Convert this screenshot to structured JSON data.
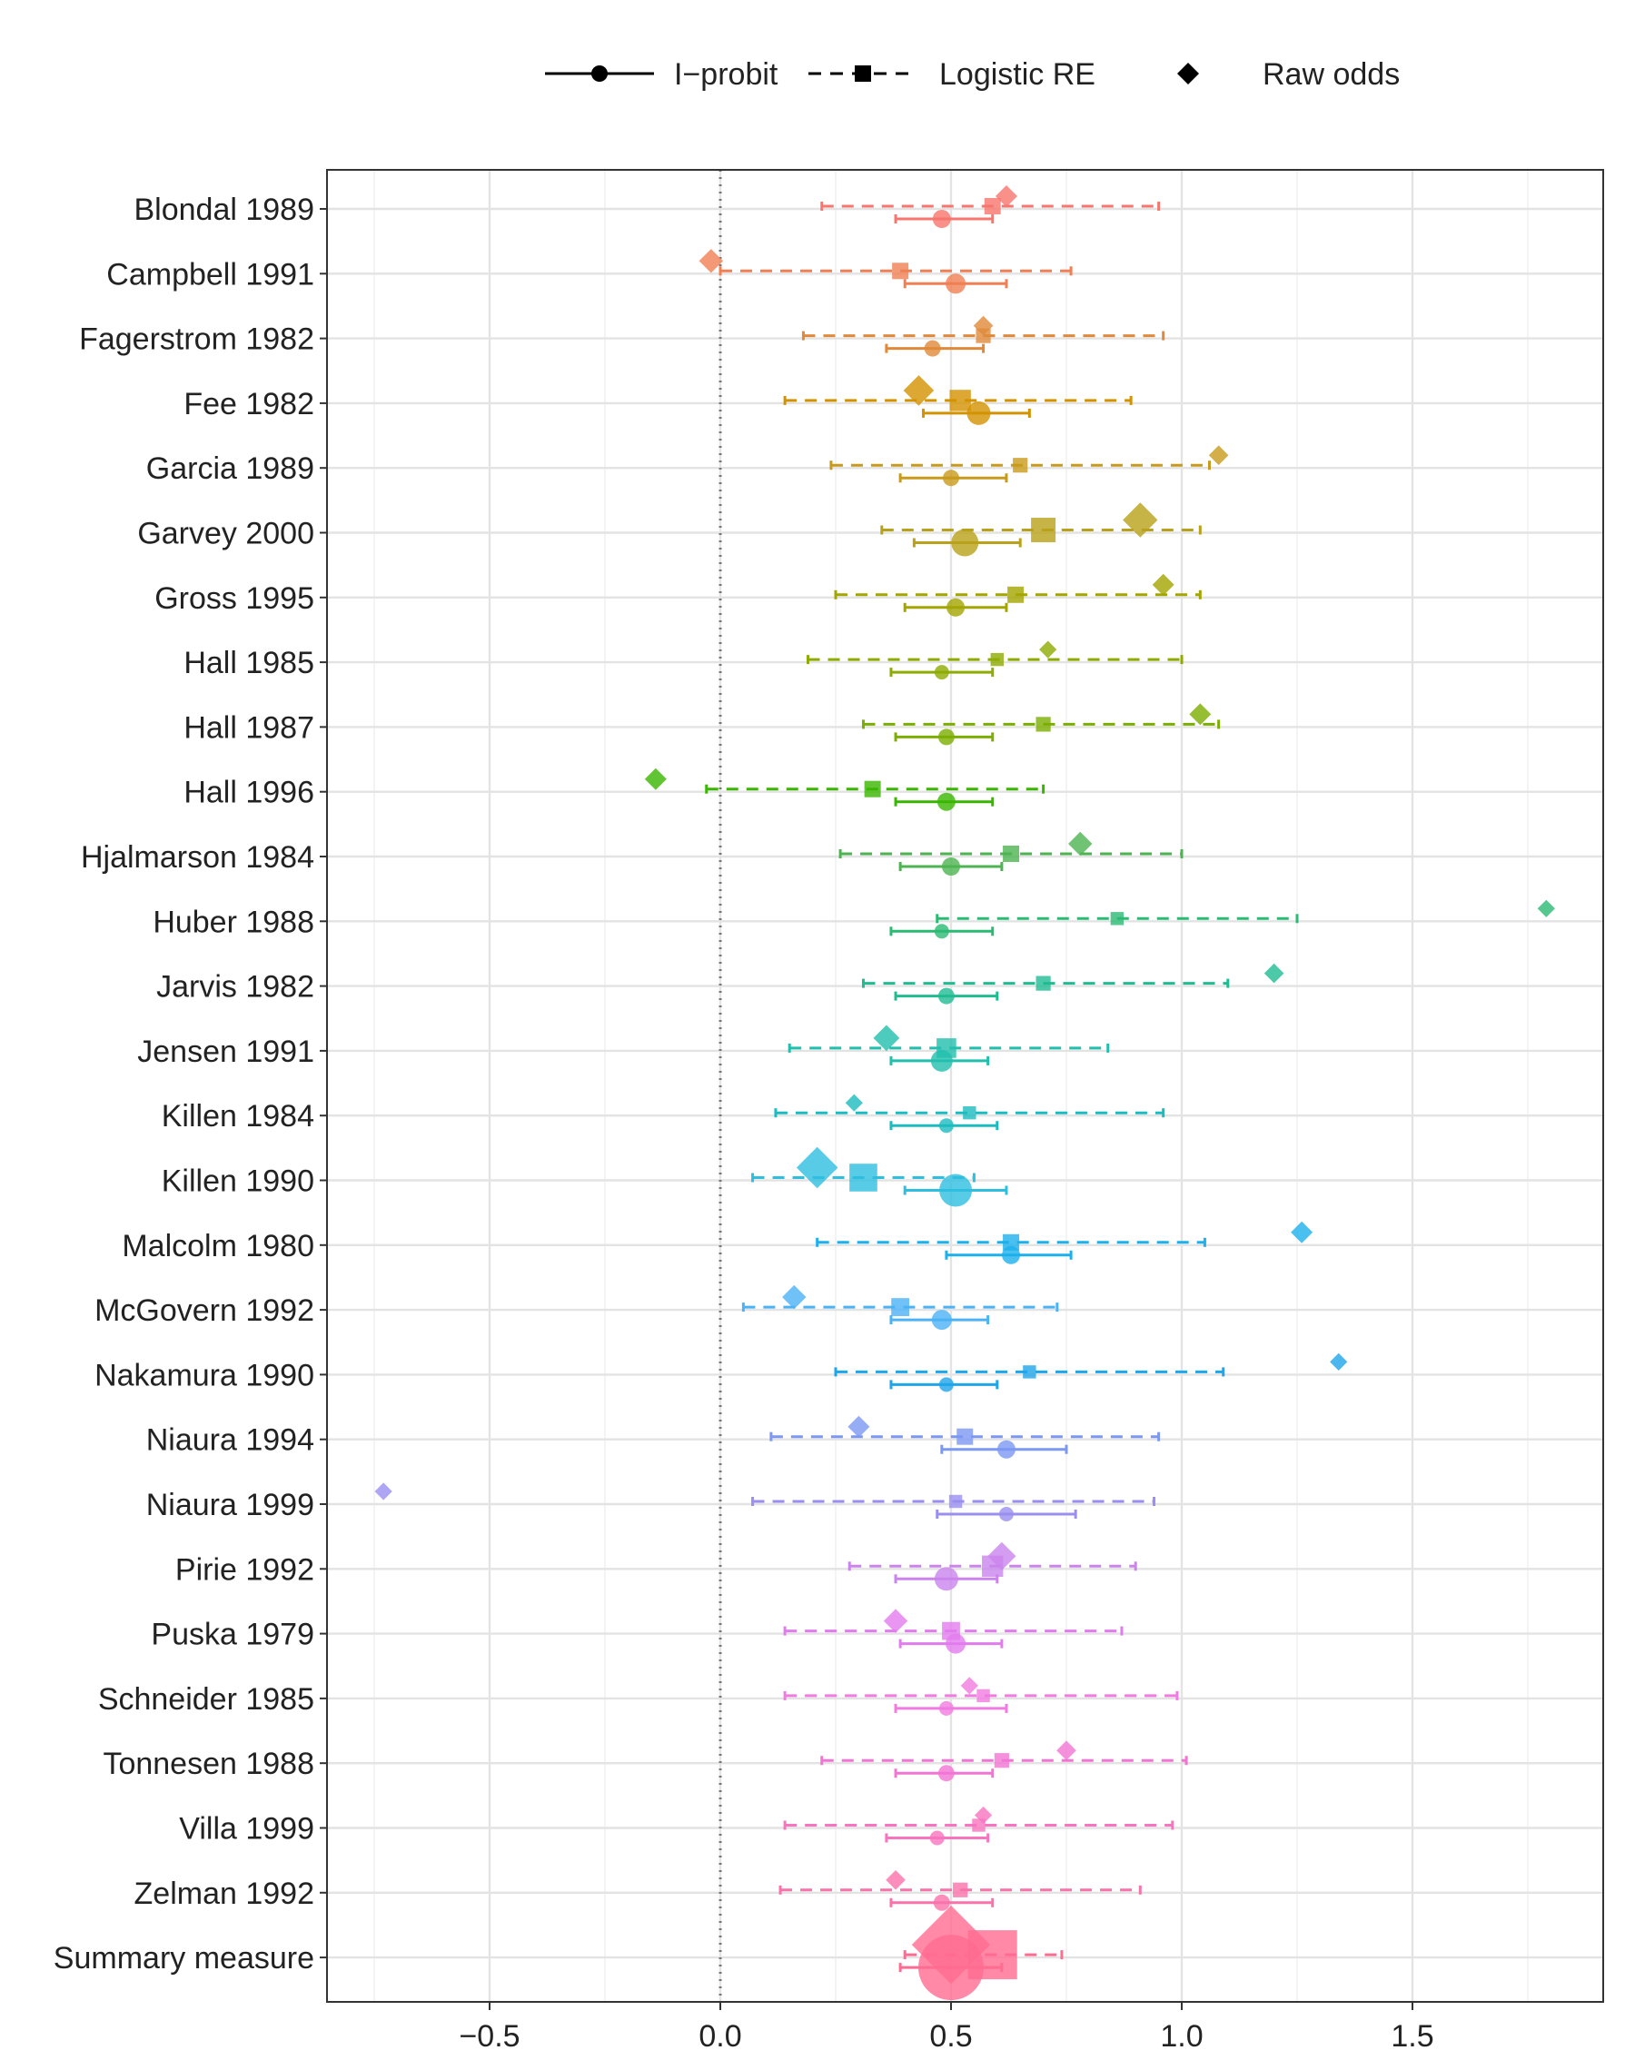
{
  "chart_data": {
    "type": "forest",
    "title": "",
    "xlabel": "",
    "ylabel": "",
    "xlim": [
      -0.75,
      1.82
    ],
    "xticks": [
      -0.5,
      0.0,
      0.5,
      1.0,
      1.5
    ],
    "xtick_labels": [
      "−0.5",
      "0.0",
      "0.5",
      "1.0",
      "1.5"
    ],
    "reference_line_x": 0.0,
    "grid": true,
    "legend_position": "top",
    "legend": [
      {
        "key": "iprobit",
        "label": "I−probit",
        "line": "solid",
        "marker": "circle"
      },
      {
        "key": "logistic",
        "label": "Logistic RE",
        "line": "dashed",
        "marker": "square"
      },
      {
        "key": "raw",
        "label": "Raw odds",
        "line": "none",
        "marker": "diamond"
      }
    ],
    "studies": [
      {
        "name": "Blondal 1989",
        "color": "#F8766D",
        "iprobit": {
          "est": 0.48,
          "lo": 0.38,
          "hi": 0.59,
          "size": 1.0
        },
        "logistic": {
          "est": 0.59,
          "lo": 0.22,
          "hi": 0.95,
          "size": 1.0
        },
        "raw": {
          "est": 0.62,
          "size": 1.0
        }
      },
      {
        "name": "Campbell 1991",
        "color": "#F07F53",
        "iprobit": {
          "est": 0.51,
          "lo": 0.4,
          "hi": 0.62,
          "size": 1.1
        },
        "logistic": {
          "est": 0.39,
          "lo": 0.0,
          "hi": 0.76,
          "size": 1.0
        },
        "raw": {
          "est": -0.02,
          "size": 1.1
        }
      },
      {
        "name": "Fagerstrom 1982",
        "color": "#E0893A",
        "iprobit": {
          "est": 0.46,
          "lo": 0.36,
          "hi": 0.57,
          "size": 0.9
        },
        "logistic": {
          "est": 0.57,
          "lo": 0.18,
          "hi": 0.96,
          "size": 0.9
        },
        "raw": {
          "est": 0.57,
          "size": 0.9
        }
      },
      {
        "name": "Fee 1982",
        "color": "#D39200",
        "iprobit": {
          "est": 0.56,
          "lo": 0.44,
          "hi": 0.67,
          "size": 1.3
        },
        "logistic": {
          "est": 0.52,
          "lo": 0.14,
          "hi": 0.89,
          "size": 1.3
        },
        "raw": {
          "est": 0.43,
          "size": 1.4
        }
      },
      {
        "name": "Garcia 1989",
        "color": "#C89A1C",
        "iprobit": {
          "est": 0.5,
          "lo": 0.39,
          "hi": 0.62,
          "size": 0.9
        },
        "logistic": {
          "est": 0.65,
          "lo": 0.24,
          "hi": 1.06,
          "size": 0.9
        },
        "raw": {
          "est": 1.08,
          "size": 0.9
        }
      },
      {
        "name": "Garvey 2000",
        "color": "#B9A119",
        "iprobit": {
          "est": 0.53,
          "lo": 0.42,
          "hi": 0.65,
          "size": 1.5
        },
        "logistic": {
          "est": 0.7,
          "lo": 0.35,
          "hi": 1.04,
          "size": 1.5
        },
        "raw": {
          "est": 0.91,
          "size": 1.6
        }
      },
      {
        "name": "Gross 1995",
        "color": "#A3A500",
        "iprobit": {
          "est": 0.51,
          "lo": 0.4,
          "hi": 0.62,
          "size": 1.0
        },
        "logistic": {
          "est": 0.64,
          "lo": 0.25,
          "hi": 1.04,
          "size": 1.0
        },
        "raw": {
          "est": 0.96,
          "size": 1.0
        }
      },
      {
        "name": "Hall 1985",
        "color": "#8DAB00",
        "iprobit": {
          "est": 0.48,
          "lo": 0.37,
          "hi": 0.59,
          "size": 0.8
        },
        "logistic": {
          "est": 0.6,
          "lo": 0.19,
          "hi": 1.0,
          "size": 0.8
        },
        "raw": {
          "est": 0.71,
          "size": 0.8
        }
      },
      {
        "name": "Hall 1987",
        "color": "#7CAE00",
        "iprobit": {
          "est": 0.49,
          "lo": 0.38,
          "hi": 0.59,
          "size": 0.9
        },
        "logistic": {
          "est": 0.7,
          "lo": 0.31,
          "hi": 1.08,
          "size": 0.9
        },
        "raw": {
          "est": 1.04,
          "size": 1.0
        }
      },
      {
        "name": "Hall 1996",
        "color": "#39B600",
        "iprobit": {
          "est": 0.49,
          "lo": 0.38,
          "hi": 0.59,
          "size": 1.0
        },
        "logistic": {
          "est": 0.33,
          "lo": -0.03,
          "hi": 0.7,
          "size": 1.0
        },
        "raw": {
          "est": -0.14,
          "size": 1.0
        }
      },
      {
        "name": "Hjalmarson 1984",
        "color": "#4DB451",
        "iprobit": {
          "est": 0.5,
          "lo": 0.39,
          "hi": 0.61,
          "size": 1.0
        },
        "logistic": {
          "est": 0.63,
          "lo": 0.26,
          "hi": 1.0,
          "size": 1.0
        },
        "raw": {
          "est": 0.78,
          "size": 1.1
        }
      },
      {
        "name": "Huber 1988",
        "color": "#2BBA74",
        "iprobit": {
          "est": 0.48,
          "lo": 0.37,
          "hi": 0.59,
          "size": 0.8
        },
        "logistic": {
          "est": 0.86,
          "lo": 0.47,
          "hi": 1.25,
          "size": 0.8
        },
        "raw": {
          "est": 1.79,
          "size": 0.8
        }
      },
      {
        "name": "Jarvis 1982",
        "color": "#1FBC92",
        "iprobit": {
          "est": 0.49,
          "lo": 0.38,
          "hi": 0.6,
          "size": 0.9
        },
        "logistic": {
          "est": 0.7,
          "lo": 0.31,
          "hi": 1.1,
          "size": 0.9
        },
        "raw": {
          "est": 1.2,
          "size": 0.9
        }
      },
      {
        "name": "Jensen 1991",
        "color": "#20BFAE",
        "iprobit": {
          "est": 0.48,
          "lo": 0.37,
          "hi": 0.58,
          "size": 1.2
        },
        "logistic": {
          "est": 0.49,
          "lo": 0.15,
          "hi": 0.84,
          "size": 1.2
        },
        "raw": {
          "est": 0.36,
          "size": 1.2
        }
      },
      {
        "name": "Killen 1984",
        "color": "#1CBBBF",
        "iprobit": {
          "est": 0.49,
          "lo": 0.37,
          "hi": 0.6,
          "size": 0.8
        },
        "logistic": {
          "est": 0.54,
          "lo": 0.12,
          "hi": 0.96,
          "size": 0.8
        },
        "raw": {
          "est": 0.29,
          "size": 0.8
        }
      },
      {
        "name": "Killen 1990",
        "color": "#2EBEE0",
        "iprobit": {
          "est": 0.51,
          "lo": 0.4,
          "hi": 0.62,
          "size": 1.8
        },
        "logistic": {
          "est": 0.31,
          "lo": 0.07,
          "hi": 0.55,
          "size": 1.7
        },
        "raw": {
          "est": 0.21,
          "size": 1.9
        }
      },
      {
        "name": "Malcolm 1980",
        "color": "#1CB0EC",
        "iprobit": {
          "est": 0.63,
          "lo": 0.49,
          "hi": 0.76,
          "size": 1.0
        },
        "logistic": {
          "est": 0.63,
          "lo": 0.21,
          "hi": 1.05,
          "size": 1.0
        },
        "raw": {
          "est": 1.26,
          "size": 1.0
        }
      },
      {
        "name": "McGovern 1992",
        "color": "#4BB2F5",
        "iprobit": {
          "est": 0.48,
          "lo": 0.37,
          "hi": 0.58,
          "size": 1.1
        },
        "logistic": {
          "est": 0.39,
          "lo": 0.05,
          "hi": 0.73,
          "size": 1.1
        },
        "raw": {
          "est": 0.16,
          "size": 1.1
        }
      },
      {
        "name": "Nakamura 1990",
        "color": "#1EA5EA",
        "iprobit": {
          "est": 0.49,
          "lo": 0.37,
          "hi": 0.6,
          "size": 0.8
        },
        "logistic": {
          "est": 0.67,
          "lo": 0.25,
          "hi": 1.09,
          "size": 0.8
        },
        "raw": {
          "est": 1.34,
          "size": 0.8
        }
      },
      {
        "name": "Niaura 1994",
        "color": "#7C98F4",
        "iprobit": {
          "est": 0.62,
          "lo": 0.48,
          "hi": 0.75,
          "size": 1.0
        },
        "logistic": {
          "est": 0.53,
          "lo": 0.11,
          "hi": 0.95,
          "size": 1.0
        },
        "raw": {
          "est": 0.3,
          "size": 1.0
        }
      },
      {
        "name": "Niaura 1999",
        "color": "#9A8FF1",
        "iprobit": {
          "est": 0.62,
          "lo": 0.47,
          "hi": 0.77,
          "size": 0.8
        },
        "logistic": {
          "est": 0.51,
          "lo": 0.07,
          "hi": 0.94,
          "size": 0.8
        },
        "raw": {
          "est": -0.73,
          "size": 0.8
        }
      },
      {
        "name": "Pirie 1992",
        "color": "#CB84EE",
        "iprobit": {
          "est": 0.49,
          "lo": 0.38,
          "hi": 0.6,
          "size": 1.3
        },
        "logistic": {
          "est": 0.59,
          "lo": 0.28,
          "hi": 0.9,
          "size": 1.3
        },
        "raw": {
          "est": 0.61,
          "size": 1.3
        }
      },
      {
        "name": "Puska 1979",
        "color": "#E27CEE",
        "iprobit": {
          "est": 0.51,
          "lo": 0.39,
          "hi": 0.61,
          "size": 1.1
        },
        "logistic": {
          "est": 0.5,
          "lo": 0.14,
          "hi": 0.87,
          "size": 1.1
        },
        "raw": {
          "est": 0.38,
          "size": 1.1
        }
      },
      {
        "name": "Schneider 1985",
        "color": "#F17BE0",
        "iprobit": {
          "est": 0.49,
          "lo": 0.38,
          "hi": 0.62,
          "size": 0.8
        },
        "logistic": {
          "est": 0.57,
          "lo": 0.14,
          "hi": 0.99,
          "size": 0.8
        },
        "raw": {
          "est": 0.54,
          "size": 0.8
        }
      },
      {
        "name": "Tonnesen 1988",
        "color": "#F374D4",
        "iprobit": {
          "est": 0.49,
          "lo": 0.38,
          "hi": 0.59,
          "size": 0.9
        },
        "logistic": {
          "est": 0.61,
          "lo": 0.22,
          "hi": 1.01,
          "size": 0.9
        },
        "raw": {
          "est": 0.75,
          "size": 0.9
        }
      },
      {
        "name": "Villa 1999",
        "color": "#F874BF",
        "iprobit": {
          "est": 0.47,
          "lo": 0.36,
          "hi": 0.58,
          "size": 0.8
        },
        "logistic": {
          "est": 0.56,
          "lo": 0.14,
          "hi": 0.98,
          "size": 0.8
        },
        "raw": {
          "est": 0.57,
          "size": 0.8
        }
      },
      {
        "name": "Zelman 1992",
        "color": "#FA72AA",
        "iprobit": {
          "est": 0.48,
          "lo": 0.37,
          "hi": 0.59,
          "size": 0.9
        },
        "logistic": {
          "est": 0.52,
          "lo": 0.13,
          "hi": 0.91,
          "size": 0.9
        },
        "raw": {
          "est": 0.38,
          "size": 0.9
        }
      },
      {
        "name": "Summary measure",
        "color": "#FF6C91",
        "iprobit": {
          "est": 0.5,
          "lo": 0.39,
          "hi": 0.61,
          "size": 3.6
        },
        "logistic": {
          "est": 0.59,
          "lo": 0.4,
          "hi": 0.74,
          "size": 3.0
        },
        "raw": {
          "est": 0.5,
          "size": 3.6
        }
      }
    ]
  }
}
